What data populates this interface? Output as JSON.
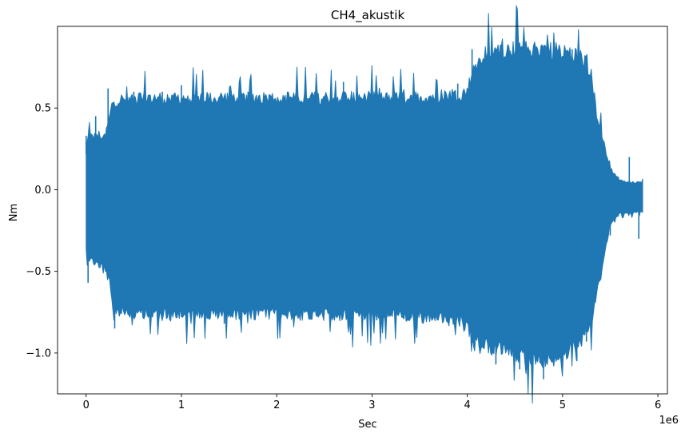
{
  "chart_data": {
    "type": "line",
    "title": "CH4_akustik",
    "xlabel": "Sec",
    "ylabel": "Nm",
    "x_offset_label": "1e6",
    "xlim": [
      -300000,
      6100000
    ],
    "ylim": [
      -1.25,
      1.0
    ],
    "x_ticks": [
      0,
      1000000,
      2000000,
      3000000,
      4000000,
      5000000,
      6000000
    ],
    "x_tick_labels": [
      "0",
      "1",
      "2",
      "3",
      "4",
      "5",
      "6"
    ],
    "y_ticks": [
      -1.0,
      -0.5,
      0.0,
      0.5
    ],
    "y_tick_labels": [
      "−1.0",
      "−0.5",
      "0.0",
      "0.5"
    ],
    "grid": false,
    "series": [
      {
        "color": "#1f77b4",
        "envelope": {
          "x": [
            0,
            20000,
            100000,
            200000,
            250000,
            280000,
            600000,
            1000000,
            1500000,
            2000000,
            2500000,
            3000000,
            3500000,
            3900000,
            4000000,
            4050000,
            4200000,
            4500000,
            4800000,
            5000000,
            5200000,
            5300000,
            5350000,
            5450000,
            5500000,
            5600000,
            5700000,
            5840000
          ],
          "upper": [
            0.22,
            0.3,
            0.3,
            0.3,
            0.42,
            0.5,
            0.52,
            0.52,
            0.52,
            0.52,
            0.52,
            0.53,
            0.52,
            0.54,
            0.55,
            0.68,
            0.78,
            0.8,
            0.8,
            0.79,
            0.75,
            0.68,
            0.45,
            0.22,
            0.12,
            0.05,
            0.04,
            0.04
          ],
          "lower": [
            -0.35,
            -0.4,
            -0.42,
            -0.45,
            -0.55,
            -0.7,
            -0.72,
            -0.72,
            -0.72,
            -0.72,
            -0.73,
            -0.72,
            -0.74,
            -0.76,
            -0.8,
            -0.86,
            -0.9,
            -0.95,
            -1.0,
            -0.95,
            -0.88,
            -0.78,
            -0.62,
            -0.35,
            -0.2,
            -0.14,
            -0.14,
            -0.13
          ]
        },
        "peaks": [
          [
            0,
            0.33
          ],
          [
            20000,
            -0.57
          ],
          [
            100000,
            0.45
          ],
          [
            230000,
            0.62
          ],
          [
            300000,
            -0.85
          ],
          [
            500000,
            0.6
          ],
          [
            800000,
            0.6
          ],
          [
            1000000,
            0.64
          ],
          [
            1000000,
            -0.78
          ],
          [
            1450000,
            -0.82
          ],
          [
            1700000,
            0.6
          ],
          [
            2400000,
            0.6
          ],
          [
            2700000,
            0.66
          ],
          [
            2750000,
            -0.85
          ],
          [
            3050000,
            -0.8
          ],
          [
            3900000,
            0.65
          ],
          [
            4050000,
            0.86
          ],
          [
            4300000,
            -1.07
          ],
          [
            4450000,
            0.85
          ],
          [
            4550000,
            -1.1
          ],
          [
            4800000,
            0.88
          ],
          [
            4800000,
            -1.16
          ],
          [
            5100000,
            0.86
          ],
          [
            5150000,
            -1.05
          ],
          [
            5250000,
            -0.93
          ],
          [
            5450000,
            0.22
          ],
          [
            5500000,
            -0.28
          ],
          [
            5700000,
            0.2
          ],
          [
            5800000,
            -0.3
          ]
        ]
      }
    ]
  }
}
